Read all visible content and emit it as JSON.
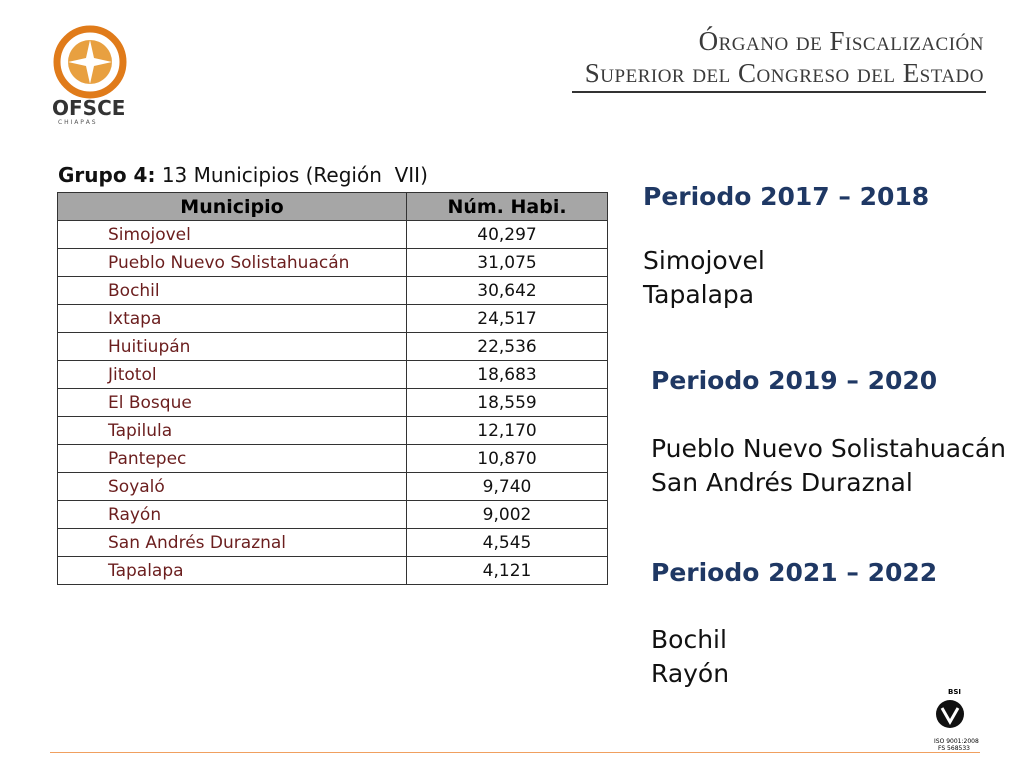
{
  "logo": {
    "name": "OFSCE",
    "sub": "C H I A P A S"
  },
  "header": {
    "line1": "Órgano de Fiscalización",
    "line2": "Superior del Congreso del Estado"
  },
  "table": {
    "caption_bold": "Grupo 4:",
    "caption": "13 Municipios (Región  VII)",
    "columns": [
      "Municipio",
      "Núm. Habi."
    ],
    "rows": [
      [
        "Simojovel",
        "40,297"
      ],
      [
        "Pueblo Nuevo Solistahuacán",
        "31,075"
      ],
      [
        "Bochil",
        "30,642"
      ],
      [
        "Ixtapa",
        "24,517"
      ],
      [
        "Huitiupán",
        "22,536"
      ],
      [
        "Jitotol",
        "18,683"
      ],
      [
        "El Bosque",
        "18,559"
      ],
      [
        "Tapilula",
        "12,170"
      ],
      [
        "Pantepec",
        "10,870"
      ],
      [
        "Soyaló",
        "9,740"
      ],
      [
        "Rayón",
        "9,002"
      ],
      [
        "San Andrés Duraznal",
        "4,545"
      ],
      [
        "Tapalapa",
        "4,121"
      ]
    ]
  },
  "periods": [
    {
      "title": "Periodo 2017 – 2018",
      "items": [
        "Simojovel",
        "Tapalapa"
      ]
    },
    {
      "title": "Periodo 2019 – 2020",
      "items": [
        "Pueblo Nuevo Solistahuacán",
        "San Andrés Duraznal"
      ]
    },
    {
      "title": "Periodo 2021 – 2022",
      "items": [
        "Bochil",
        "Rayón"
      ]
    }
  ],
  "certification": {
    "mark": "BSI",
    "lines": [
      "ISO 9001:2008",
      "FS 568533"
    ]
  }
}
